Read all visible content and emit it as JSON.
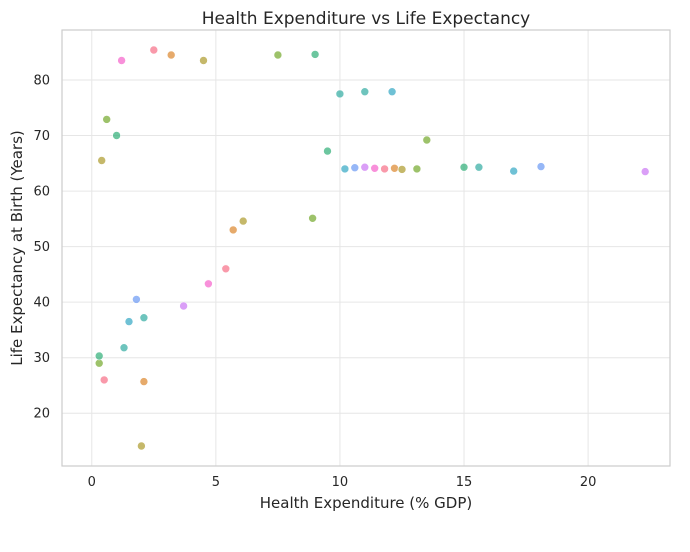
{
  "chart_data": {
    "type": "scatter",
    "title": "Health Expenditure vs Life Expectancy",
    "xlabel": "Health Expenditure (% GDP)",
    "ylabel": "Life Expectancy at Birth (Years)",
    "xlim": [
      -1.2,
      23.3
    ],
    "ylim": [
      10.5,
      89
    ],
    "xticks": [
      0,
      5,
      10,
      15,
      20
    ],
    "xtick_labels": [
      "0",
      "5",
      "10",
      "15",
      "20"
    ],
    "yticks": [
      20,
      30,
      40,
      50,
      60,
      70,
      80
    ],
    "ytick_labels": [
      "20",
      "30",
      "40",
      "50",
      "60",
      "70",
      "80"
    ],
    "grid": true,
    "legend": "none",
    "colors": [
      "#f77189",
      "#dc8932",
      "#ae9d31",
      "#77ab31",
      "#33b07a",
      "#36ada4",
      "#38a9c5",
      "#6e9bf4",
      "#cc7af4",
      "#f565cc"
    ],
    "series": [
      {
        "values": [
          [
            0.5,
            26.0
          ],
          [
            2.1,
            25.7
          ],
          [
            2.0,
            14.1
          ],
          [
            0.3,
            29.0
          ],
          [
            0.3,
            30.3
          ],
          [
            2.1,
            37.2
          ]
        ]
      },
      {
        "values": [
          [
            13.5,
            69.2
          ],
          [
            15.0,
            64.3
          ],
          [
            15.6,
            64.3
          ],
          [
            17.0,
            63.6
          ],
          [
            18.1,
            64.4
          ],
          [
            22.3,
            63.5
          ]
        ]
      },
      {
        "values": [
          [
            10.2,
            64.0
          ],
          [
            10.6,
            64.2
          ],
          [
            11.0,
            64.3
          ],
          [
            11.4,
            64.1
          ],
          [
            11.8,
            64.0
          ],
          [
            12.2,
            64.1
          ],
          [
            12.5,
            63.9
          ],
          [
            13.1,
            64.0
          ]
        ]
      },
      {
        "values": [
          [
            1.2,
            83.5
          ],
          [
            2.5,
            85.4
          ],
          [
            3.2,
            84.5
          ],
          [
            4.5,
            83.5
          ],
          [
            7.5,
            84.5
          ],
          [
            9.0,
            84.6
          ],
          [
            11.0,
            77.9
          ],
          [
            12.1,
            77.9
          ]
        ]
      },
      {
        "values": [
          [
            0.4,
            65.5
          ],
          [
            0.6,
            72.9
          ],
          [
            1.0,
            70.0
          ],
          [
            1.3,
            31.8
          ],
          [
            1.5,
            36.5
          ],
          [
            1.8,
            40.5
          ],
          [
            3.7,
            39.3
          ],
          [
            4.7,
            43.3
          ],
          [
            5.4,
            46.0
          ],
          [
            5.7,
            53.0
          ],
          [
            6.1,
            54.6
          ],
          [
            8.9,
            55.1
          ],
          [
            9.5,
            67.2
          ],
          [
            10.0,
            77.5
          ]
        ]
      }
    ]
  }
}
